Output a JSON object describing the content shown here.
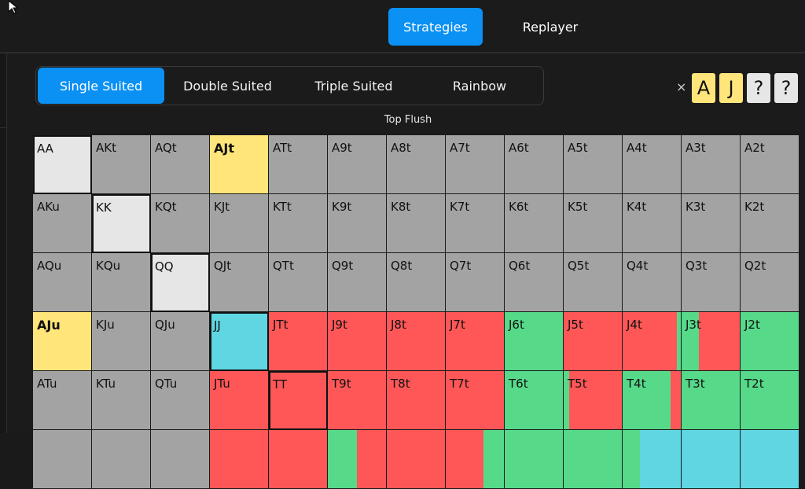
{
  "header": {
    "nav": [
      {
        "label": "Strategies",
        "active": true
      },
      {
        "label": "Replayer",
        "active": false
      }
    ]
  },
  "suit_tabs": [
    {
      "label": "Single Suited",
      "active": true
    },
    {
      "label": "Double Suited",
      "active": false
    },
    {
      "label": "Triple Suited",
      "active": false
    },
    {
      "label": "Rainbow",
      "active": false
    }
  ],
  "hand_selector": {
    "clear_label": "×",
    "cards": [
      {
        "label": "A",
        "color": "#ffe57a"
      },
      {
        "label": "J",
        "color": "#ffe57a"
      },
      {
        "label": "?",
        "color": "#e6e6e6"
      },
      {
        "label": "?",
        "color": "#e6e6e6"
      }
    ]
  },
  "grid": {
    "title": "Top Flush",
    "colors": {
      "gray": "#a3a3a3",
      "light": "#e6e6e6",
      "yellow": "#ffe57a",
      "cyan": "#5fd6e2",
      "red": "#ff5757",
      "green": "#57d98a"
    },
    "rows": [
      [
        {
          "label": "AA",
          "fills": [
            [
              "light",
              1
            ]
          ],
          "outline": true
        },
        {
          "label": "AKt",
          "fills": [
            [
              "gray",
              1
            ]
          ]
        },
        {
          "label": "AQt",
          "fills": [
            [
              "gray",
              1
            ]
          ]
        },
        {
          "label": "AJt",
          "fills": [
            [
              "yellow",
              1
            ]
          ],
          "bold": true
        },
        {
          "label": "ATt",
          "fills": [
            [
              "gray",
              1
            ]
          ]
        },
        {
          "label": "A9t",
          "fills": [
            [
              "gray",
              1
            ]
          ]
        },
        {
          "label": "A8t",
          "fills": [
            [
              "gray",
              1
            ]
          ]
        },
        {
          "label": "A7t",
          "fills": [
            [
              "gray",
              1
            ]
          ]
        },
        {
          "label": "A6t",
          "fills": [
            [
              "gray",
              1
            ]
          ]
        },
        {
          "label": "A5t",
          "fills": [
            [
              "gray",
              1
            ]
          ]
        },
        {
          "label": "A4t",
          "fills": [
            [
              "gray",
              1
            ]
          ]
        },
        {
          "label": "A3t",
          "fills": [
            [
              "gray",
              1
            ]
          ]
        },
        {
          "label": "A2t",
          "fills": [
            [
              "gray",
              1
            ]
          ]
        }
      ],
      [
        {
          "label": "AKu",
          "fills": [
            [
              "gray",
              1
            ]
          ]
        },
        {
          "label": "KK",
          "fills": [
            [
              "light",
              1
            ]
          ],
          "outline": true
        },
        {
          "label": "KQt",
          "fills": [
            [
              "gray",
              1
            ]
          ]
        },
        {
          "label": "KJt",
          "fills": [
            [
              "gray",
              1
            ]
          ]
        },
        {
          "label": "KTt",
          "fills": [
            [
              "gray",
              1
            ]
          ]
        },
        {
          "label": "K9t",
          "fills": [
            [
              "gray",
              1
            ]
          ]
        },
        {
          "label": "K8t",
          "fills": [
            [
              "gray",
              1
            ]
          ]
        },
        {
          "label": "K7t",
          "fills": [
            [
              "gray",
              1
            ]
          ]
        },
        {
          "label": "K6t",
          "fills": [
            [
              "gray",
              1
            ]
          ]
        },
        {
          "label": "K5t",
          "fills": [
            [
              "gray",
              1
            ]
          ]
        },
        {
          "label": "K4t",
          "fills": [
            [
              "gray",
              1
            ]
          ]
        },
        {
          "label": "K3t",
          "fills": [
            [
              "gray",
              1
            ]
          ]
        },
        {
          "label": "K2t",
          "fills": [
            [
              "gray",
              1
            ]
          ]
        }
      ],
      [
        {
          "label": "AQu",
          "fills": [
            [
              "gray",
              1
            ]
          ]
        },
        {
          "label": "KQu",
          "fills": [
            [
              "gray",
              1
            ]
          ]
        },
        {
          "label": "QQ",
          "fills": [
            [
              "light",
              1
            ]
          ],
          "outline": true
        },
        {
          "label": "QJt",
          "fills": [
            [
              "gray",
              1
            ]
          ]
        },
        {
          "label": "QTt",
          "fills": [
            [
              "gray",
              1
            ]
          ]
        },
        {
          "label": "Q9t",
          "fills": [
            [
              "gray",
              1
            ]
          ]
        },
        {
          "label": "Q8t",
          "fills": [
            [
              "gray",
              1
            ]
          ]
        },
        {
          "label": "Q7t",
          "fills": [
            [
              "gray",
              1
            ]
          ]
        },
        {
          "label": "Q6t",
          "fills": [
            [
              "gray",
              1
            ]
          ]
        },
        {
          "label": "Q5t",
          "fills": [
            [
              "gray",
              1
            ]
          ]
        },
        {
          "label": "Q4t",
          "fills": [
            [
              "gray",
              1
            ]
          ]
        },
        {
          "label": "Q3t",
          "fills": [
            [
              "gray",
              1
            ]
          ]
        },
        {
          "label": "Q2t",
          "fills": [
            [
              "gray",
              1
            ]
          ]
        }
      ],
      [
        {
          "label": "AJu",
          "fills": [
            [
              "yellow",
              1
            ]
          ],
          "bold": true
        },
        {
          "label": "KJu",
          "fills": [
            [
              "gray",
              1
            ]
          ]
        },
        {
          "label": "QJu",
          "fills": [
            [
              "gray",
              1
            ]
          ]
        },
        {
          "label": "JJ",
          "fills": [
            [
              "cyan",
              1
            ]
          ],
          "outline": true
        },
        {
          "label": "JTt",
          "fills": [
            [
              "red",
              1
            ]
          ]
        },
        {
          "label": "J9t",
          "fills": [
            [
              "red",
              1
            ]
          ]
        },
        {
          "label": "J8t",
          "fills": [
            [
              "red",
              1
            ]
          ]
        },
        {
          "label": "J7t",
          "fills": [
            [
              "red",
              1
            ]
          ]
        },
        {
          "label": "J6t",
          "fills": [
            [
              "green",
              1
            ]
          ]
        },
        {
          "label": "J5t",
          "fills": [
            [
              "red",
              1
            ]
          ]
        },
        {
          "label": "J4t",
          "fills": [
            [
              "red",
              0.93
            ],
            [
              "green",
              0.07
            ]
          ]
        },
        {
          "label": "J3t",
          "fills": [
            [
              "green",
              0.3
            ],
            [
              "red",
              0.7
            ]
          ]
        },
        {
          "label": "J2t",
          "fills": [
            [
              "green",
              1
            ]
          ]
        }
      ],
      [
        {
          "label": "ATu",
          "fills": [
            [
              "gray",
              1
            ]
          ]
        },
        {
          "label": "KTu",
          "fills": [
            [
              "gray",
              1
            ]
          ]
        },
        {
          "label": "QTu",
          "fills": [
            [
              "gray",
              1
            ]
          ]
        },
        {
          "label": "JTu",
          "fills": [
            [
              "red",
              1
            ]
          ]
        },
        {
          "label": "TT",
          "fills": [
            [
              "red",
              1
            ]
          ],
          "outline": true
        },
        {
          "label": "T9t",
          "fills": [
            [
              "red",
              1
            ]
          ]
        },
        {
          "label": "T8t",
          "fills": [
            [
              "red",
              1
            ]
          ]
        },
        {
          "label": "T7t",
          "fills": [
            [
              "red",
              1
            ]
          ]
        },
        {
          "label": "T6t",
          "fills": [
            [
              "green",
              1
            ]
          ]
        },
        {
          "label": "T5t",
          "fills": [
            [
              "green",
              0.1
            ],
            [
              "red",
              0.9
            ]
          ]
        },
        {
          "label": "T4t",
          "fills": [
            [
              "green",
              0.82
            ],
            [
              "red",
              0.18
            ]
          ]
        },
        {
          "label": "T3t",
          "fills": [
            [
              "green",
              1
            ]
          ]
        },
        {
          "label": "T2t",
          "fills": [
            [
              "green",
              1
            ]
          ]
        }
      ],
      [
        {
          "label": "",
          "fills": [
            [
              "gray",
              1
            ]
          ]
        },
        {
          "label": "",
          "fills": [
            [
              "gray",
              1
            ]
          ]
        },
        {
          "label": "",
          "fills": [
            [
              "gray",
              1
            ]
          ]
        },
        {
          "label": "",
          "fills": [
            [
              "red",
              1
            ]
          ]
        },
        {
          "label": "",
          "fills": [
            [
              "red",
              1
            ]
          ]
        },
        {
          "label": "",
          "fills": [
            [
              "green",
              0.5
            ],
            [
              "red",
              0.5
            ]
          ]
        },
        {
          "label": "",
          "fills": [
            [
              "red",
              1
            ]
          ]
        },
        {
          "label": "",
          "fills": [
            [
              "red",
              0.65
            ],
            [
              "green",
              0.35
            ]
          ]
        },
        {
          "label": "",
          "fills": [
            [
              "green",
              1
            ]
          ]
        },
        {
          "label": "",
          "fills": [
            [
              "green",
              1
            ]
          ]
        },
        {
          "label": "",
          "fills": [
            [
              "green",
              0.3
            ],
            [
              "cyan",
              0.7
            ]
          ]
        },
        {
          "label": "",
          "fills": [
            [
              "cyan",
              1
            ]
          ]
        },
        {
          "label": "",
          "fills": [
            [
              "cyan",
              1
            ]
          ]
        }
      ]
    ]
  }
}
